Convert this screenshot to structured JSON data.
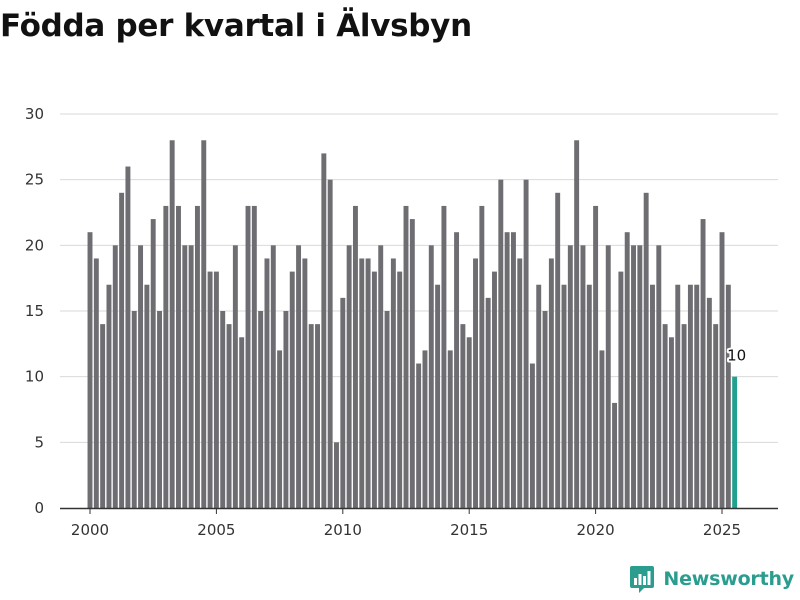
{
  "title": "Födda per kvartal i Älvsbyn",
  "brand": {
    "name": "Newsworthy",
    "icon": "newsworthy-logo-icon",
    "color": "#2a9d8f"
  },
  "chart_data": {
    "type": "bar",
    "title": "Födda per kvartal i Älvsbyn",
    "xlabel": "",
    "ylabel": "",
    "x_start": "2000 Q1",
    "x_ticks": [
      2000,
      2005,
      2010,
      2015,
      2020,
      2025
    ],
    "y_ticks": [
      0,
      5,
      10,
      15,
      20,
      25,
      30
    ],
    "ylim": [
      0,
      30
    ],
    "grid": true,
    "bar_color": "#6e6e72",
    "highlight_color": "#21a090",
    "highlight_label": "10",
    "values": [
      21,
      19,
      14,
      17,
      20,
      24,
      26,
      15,
      20,
      17,
      22,
      15,
      23,
      28,
      23,
      20,
      20,
      23,
      28,
      18,
      18,
      15,
      14,
      20,
      13,
      23,
      23,
      15,
      19,
      20,
      12,
      15,
      18,
      20,
      19,
      14,
      14,
      27,
      25,
      5,
      16,
      20,
      23,
      19,
      19,
      18,
      20,
      15,
      19,
      18,
      23,
      22,
      11,
      12,
      20,
      17,
      23,
      12,
      21,
      14,
      13,
      19,
      23,
      16,
      18,
      25,
      21,
      21,
      19,
      25,
      11,
      17,
      15,
      19,
      24,
      17,
      20,
      28,
      20,
      17,
      23,
      12,
      20,
      8,
      18,
      21,
      20,
      20,
      24,
      17,
      20,
      14,
      13,
      17,
      14,
      17,
      17,
      22,
      16,
      14,
      21,
      17,
      10
    ]
  }
}
